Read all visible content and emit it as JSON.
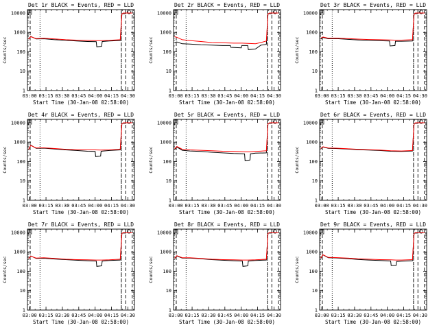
{
  "figure": {
    "background": "#ffffff",
    "axis_color": "#000000",
    "event_color": "#000000",
    "lld_color": "#ff0000"
  },
  "shared_axes": {
    "x_tick_labels": [
      "03:00",
      "03:15",
      "03:30",
      "03:45",
      "04:00",
      "04:15",
      "04:30"
    ],
    "y_tick_labels": [
      "1",
      "10",
      "100",
      "1000",
      "10000"
    ],
    "xlabel": "Start Time (30-Jan-08 02:58:00)",
    "ylabel": "Counts/sec"
  },
  "chart_data": [
    {
      "type": "line",
      "title": "Det 1r BLACK = Events, RED = LLD",
      "xlabel": "Start Time (30-Jan-08 02:58:00)",
      "ylabel": "Counts/sec",
      "x_unit": "minutes after 02:58:00",
      "xlim": [
        0,
        98
      ],
      "ylim": [
        1,
        15000
      ],
      "y_scale": "log",
      "x_ticks": [
        "03:00",
        "03:15",
        "03:30",
        "03:45",
        "04:00",
        "04:15",
        "04:30"
      ],
      "y_ticks": [
        "1",
        "10",
        "100",
        "1000",
        "10000"
      ],
      "vlines_dotted": [
        11.5,
        86
      ],
      "vlines_dashed": [
        2.5,
        86,
        90,
        96
      ],
      "series": [
        {
          "name": "Events",
          "color": "#000000",
          "x": [
            1,
            3,
            8,
            15,
            25,
            35,
            45,
            55,
            63,
            63.5,
            68,
            68.5,
            75,
            85,
            86.5,
            88,
            90,
            96
          ],
          "y": [
            450,
            620,
            460,
            470,
            420,
            390,
            360,
            340,
            330,
            180,
            190,
            340,
            360,
            380,
            9000,
            10000,
            10000,
            10000
          ]
        },
        {
          "name": "LLD",
          "color": "#ff0000",
          "x": [
            1,
            3,
            8,
            15,
            25,
            35,
            45,
            55,
            63,
            68,
            75,
            85,
            86.5,
            88,
            90,
            96
          ],
          "y": [
            450,
            600,
            480,
            500,
            460,
            420,
            400,
            390,
            380,
            380,
            390,
            420,
            9000,
            10000,
            10000,
            10000
          ]
        }
      ]
    },
    {
      "type": "line",
      "title": "Det 2r BLACK = Events, RED = LLD",
      "xlabel": "Start Time (30-Jan-08 02:58:00)",
      "ylabel": "Counts/sec",
      "x_unit": "minutes after 02:58:00",
      "xlim": [
        0,
        98
      ],
      "ylim": [
        1,
        15000
      ],
      "y_scale": "log",
      "x_ticks": [
        "03:00",
        "03:15",
        "03:30",
        "03:45",
        "04:00",
        "04:15",
        "04:30"
      ],
      "y_ticks": [
        "1",
        "10",
        "100",
        "1000",
        "10000"
      ],
      "vlines_dotted": [
        11.5,
        86
      ],
      "vlines_dashed": [
        2.5,
        86,
        90,
        96
      ],
      "series": [
        {
          "name": "Events",
          "color": "#000000",
          "x": [
            1,
            3,
            8,
            15,
            25,
            35,
            45,
            52,
            52.5,
            62,
            62.5,
            68,
            68.5,
            75,
            80,
            85,
            86.5,
            88,
            90,
            96
          ],
          "y": [
            300,
            320,
            260,
            250,
            230,
            220,
            210,
            210,
            170,
            160,
            210,
            210,
            130,
            140,
            220,
            240,
            9000,
            10000,
            10000,
            10000
          ]
        },
        {
          "name": "LLD",
          "color": "#ff0000",
          "x": [
            1,
            3,
            8,
            15,
            25,
            35,
            45,
            55,
            63,
            68,
            75,
            80,
            85,
            86.5,
            88,
            90,
            96
          ],
          "y": [
            600,
            560,
            420,
            380,
            340,
            300,
            290,
            280,
            280,
            270,
            260,
            300,
            360,
            9000,
            10000,
            10000,
            10000
          ]
        }
      ]
    },
    {
      "type": "line",
      "title": "Det 3r BLACK = Events, RED = LLD",
      "xlabel": "Start Time (30-Jan-08 02:58:00)",
      "ylabel": "Counts/sec",
      "x_unit": "minutes after 02:58:00",
      "xlim": [
        0,
        98
      ],
      "ylim": [
        1,
        15000
      ],
      "y_scale": "log",
      "x_ticks": [
        "03:00",
        "03:15",
        "03:30",
        "03:45",
        "04:00",
        "04:15",
        "04:30"
      ],
      "y_ticks": [
        "1",
        "10",
        "100",
        "1000",
        "10000"
      ],
      "vlines_dotted": [
        11.5,
        86
      ],
      "vlines_dashed": [
        2.5,
        86,
        90,
        96
      ],
      "series": [
        {
          "name": "Events",
          "color": "#000000",
          "x": [
            1,
            3,
            8,
            15,
            25,
            35,
            45,
            55,
            64,
            64.5,
            69,
            69.5,
            75,
            85,
            86.5,
            88,
            90,
            96
          ],
          "y": [
            450,
            550,
            470,
            480,
            440,
            410,
            390,
            370,
            360,
            200,
            210,
            350,
            350,
            360,
            9000,
            10000,
            10000,
            10000
          ]
        },
        {
          "name": "LLD",
          "color": "#ff0000",
          "x": [
            1,
            3,
            8,
            15,
            25,
            35,
            45,
            55,
            64,
            69,
            75,
            85,
            86.5,
            88,
            90,
            96
          ],
          "y": [
            500,
            580,
            500,
            510,
            480,
            450,
            430,
            420,
            410,
            400,
            400,
            420,
            9000,
            10000,
            10000,
            10000
          ]
        }
      ]
    },
    {
      "type": "line",
      "title": "Det 4r BLACK = Events, RED = LLD",
      "xlabel": "Start Time (30-Jan-08 02:58:00)",
      "ylabel": "Counts/sec",
      "x_unit": "minutes after 02:58:00",
      "xlim": [
        0,
        98
      ],
      "ylim": [
        1,
        15000
      ],
      "y_scale": "log",
      "x_ticks": [
        "03:00",
        "03:15",
        "03:30",
        "03:45",
        "04:00",
        "04:15",
        "04:30"
      ],
      "y_ticks": [
        "1",
        "10",
        "100",
        "1000",
        "10000"
      ],
      "vlines_dotted": [
        11.5,
        86
      ],
      "vlines_dashed": [
        2.5,
        86,
        90,
        96
      ],
      "series": [
        {
          "name": "Events",
          "color": "#000000",
          "x": [
            1,
            3,
            8,
            15,
            25,
            35,
            45,
            55,
            62,
            62.5,
            67,
            67.5,
            75,
            85,
            86.5,
            88,
            90,
            96
          ],
          "y": [
            400,
            700,
            480,
            490,
            440,
            400,
            370,
            340,
            330,
            180,
            190,
            340,
            370,
            400,
            9000,
            10000,
            10000,
            10000
          ]
        },
        {
          "name": "LLD",
          "color": "#ff0000",
          "x": [
            1,
            3,
            8,
            15,
            25,
            35,
            45,
            55,
            62,
            67,
            75,
            85,
            86.5,
            88,
            90,
            96
          ],
          "y": [
            420,
            680,
            500,
            510,
            470,
            430,
            410,
            400,
            400,
            390,
            400,
            430,
            9000,
            10000,
            10000,
            10000
          ]
        }
      ]
    },
    {
      "type": "line",
      "title": "Det 5r BLACK = Events, RED = LLD",
      "xlabel": "Start Time (30-Jan-08 02:58:00)",
      "ylabel": "Counts/sec",
      "x_unit": "minutes after 02:58:00",
      "xlim": [
        0,
        98
      ],
      "ylim": [
        1,
        15000
      ],
      "y_scale": "log",
      "x_ticks": [
        "03:00",
        "03:15",
        "03:30",
        "03:45",
        "04:00",
        "04:15",
        "04:30"
      ],
      "y_ticks": [
        "1",
        "10",
        "100",
        "1000",
        "10000"
      ],
      "vlines_dotted": [
        11.5,
        86
      ],
      "vlines_dashed": [
        2.5,
        86,
        90,
        96
      ],
      "series": [
        {
          "name": "Events",
          "color": "#000000",
          "x": [
            1,
            3,
            8,
            15,
            25,
            35,
            45,
            55,
            65,
            65.5,
            70,
            70.5,
            75,
            85,
            86.5,
            88,
            90,
            96
          ],
          "y": [
            420,
            560,
            380,
            350,
            330,
            300,
            280,
            260,
            250,
            110,
            120,
            250,
            270,
            280,
            9000,
            10000,
            10000,
            10000
          ]
        },
        {
          "name": "LLD",
          "color": "#ff0000",
          "x": [
            1,
            3,
            8,
            15,
            25,
            35,
            45,
            55,
            65,
            70,
            75,
            85,
            86.5,
            88,
            90,
            96
          ],
          "y": [
            450,
            600,
            430,
            400,
            380,
            360,
            340,
            330,
            320,
            320,
            330,
            360,
            9000,
            10000,
            10000,
            10000
          ]
        }
      ]
    },
    {
      "type": "line",
      "title": "Det 6r BLACK = Events, RED = LLD",
      "xlabel": "Start Time (30-Jan-08 02:58:00)",
      "ylabel": "Counts/sec",
      "x_unit": "minutes after 02:58:00",
      "xlim": [
        0,
        98
      ],
      "ylim": [
        1,
        15000
      ],
      "y_scale": "log",
      "x_ticks": [
        "03:00",
        "03:15",
        "03:30",
        "03:45",
        "04:00",
        "04:15",
        "04:30"
      ],
      "y_ticks": [
        "1",
        "10",
        "100",
        "1000",
        "10000"
      ],
      "vlines_dotted": [
        11.5,
        86
      ],
      "vlines_dashed": [
        2.5,
        86,
        90,
        96
      ],
      "series": [
        {
          "name": "Events",
          "color": "#000000",
          "x": [
            1,
            3,
            8,
            15,
            25,
            35,
            45,
            55,
            65,
            75,
            85,
            86.5,
            88,
            90,
            96
          ],
          "y": [
            450,
            560,
            480,
            470,
            440,
            410,
            390,
            370,
            340,
            330,
            350,
            9000,
            10000,
            10000,
            10000
          ]
        },
        {
          "name": "LLD",
          "color": "#ff0000",
          "x": [
            1,
            3,
            8,
            15,
            25,
            35,
            45,
            55,
            65,
            75,
            85,
            86.5,
            88,
            90,
            96
          ],
          "y": [
            470,
            580,
            500,
            490,
            460,
            430,
            410,
            390,
            360,
            350,
            370,
            9000,
            10000,
            10000,
            10000
          ]
        }
      ]
    },
    {
      "type": "line",
      "title": "Det 7r BLACK = Events, RED = LLD",
      "xlabel": "Start Time (30-Jan-08 02:58:00)",
      "ylabel": "Counts/sec",
      "x_unit": "minutes after 02:58:00",
      "xlim": [
        0,
        98
      ],
      "ylim": [
        1,
        15000
      ],
      "y_scale": "log",
      "x_ticks": [
        "03:00",
        "03:15",
        "03:30",
        "03:45",
        "04:00",
        "04:15",
        "04:30"
      ],
      "y_ticks": [
        "1",
        "10",
        "100",
        "1000",
        "10000"
      ],
      "vlines_dotted": [
        11.5,
        86
      ],
      "vlines_dashed": [
        2.5,
        86,
        90,
        96
      ],
      "series": [
        {
          "name": "Events",
          "color": "#000000",
          "x": [
            1,
            3,
            8,
            15,
            25,
            35,
            45,
            55,
            63,
            63.5,
            68,
            68.5,
            75,
            85,
            86.5,
            88,
            90,
            96
          ],
          "y": [
            450,
            620,
            460,
            470,
            430,
            400,
            370,
            350,
            340,
            180,
            190,
            340,
            360,
            380,
            9000,
            10000,
            10000,
            10000
          ]
        },
        {
          "name": "LLD",
          "color": "#ff0000",
          "x": [
            1,
            3,
            8,
            15,
            25,
            35,
            45,
            55,
            63,
            68,
            75,
            85,
            86.5,
            88,
            90,
            96
          ],
          "y": [
            460,
            600,
            480,
            500,
            460,
            420,
            400,
            390,
            380,
            380,
            390,
            420,
            9000,
            10000,
            10000,
            10000
          ]
        }
      ]
    },
    {
      "type": "line",
      "title": "Det 8r BLACK = Events, RED = LLD",
      "xlabel": "Start Time (30-Jan-08 02:58:00)",
      "ylabel": "Counts/sec",
      "x_unit": "minutes after 02:58:00",
      "xlim": [
        0,
        98
      ],
      "ylim": [
        1,
        15000
      ],
      "y_scale": "log",
      "x_ticks": [
        "03:00",
        "03:15",
        "03:30",
        "03:45",
        "04:00",
        "04:15",
        "04:30"
      ],
      "y_ticks": [
        "1",
        "10",
        "100",
        "1000",
        "10000"
      ],
      "vlines_dotted": [
        11.5,
        86
      ],
      "vlines_dashed": [
        2.5,
        86,
        90,
        96
      ],
      "series": [
        {
          "name": "Events",
          "color": "#000000",
          "x": [
            1,
            3,
            8,
            15,
            25,
            35,
            45,
            55,
            63,
            63.5,
            68,
            68.5,
            75,
            85,
            86.5,
            88,
            90,
            96
          ],
          "y": [
            450,
            620,
            480,
            480,
            440,
            400,
            370,
            350,
            340,
            180,
            190,
            340,
            360,
            380,
            9000,
            10000,
            10000,
            10000
          ]
        },
        {
          "name": "LLD",
          "color": "#ff0000",
          "x": [
            1,
            3,
            8,
            15,
            25,
            35,
            45,
            55,
            63,
            68,
            75,
            85,
            86.5,
            88,
            90,
            96
          ],
          "y": [
            470,
            640,
            500,
            500,
            460,
            420,
            400,
            390,
            380,
            380,
            390,
            420,
            9000,
            10000,
            10000,
            10000
          ]
        }
      ]
    },
    {
      "type": "line",
      "title": "Det 9r BLACK = Events, RED = LLD",
      "xlabel": "Start Time (30-Jan-08 02:58:00)",
      "ylabel": "Counts/sec",
      "x_unit": "minutes after 02:58:00",
      "xlim": [
        0,
        98
      ],
      "ylim": [
        1,
        15000
      ],
      "y_scale": "log",
      "x_ticks": [
        "03:00",
        "03:15",
        "03:30",
        "03:45",
        "04:00",
        "04:15",
        "04:30"
      ],
      "y_ticks": [
        "1",
        "10",
        "100",
        "1000",
        "10000"
      ],
      "vlines_dotted": [
        11.5,
        86
      ],
      "vlines_dashed": [
        2.5,
        86,
        90,
        96
      ],
      "series": [
        {
          "name": "Events",
          "color": "#000000",
          "x": [
            1,
            3,
            8,
            15,
            25,
            35,
            45,
            55,
            65,
            65.5,
            70,
            70.5,
            75,
            85,
            86.5,
            88,
            90,
            96
          ],
          "y": [
            450,
            700,
            500,
            490,
            450,
            410,
            380,
            360,
            340,
            200,
            200,
            320,
            330,
            350,
            9000,
            10000,
            10000,
            10000
          ]
        },
        {
          "name": "LLD",
          "color": "#ff0000",
          "x": [
            1,
            3,
            8,
            15,
            25,
            35,
            45,
            55,
            65,
            70,
            75,
            85,
            86.5,
            88,
            90,
            96
          ],
          "y": [
            480,
            720,
            520,
            510,
            480,
            440,
            420,
            400,
            390,
            380,
            380,
            400,
            9000,
            10000,
            10000,
            10000
          ]
        }
      ]
    }
  ]
}
